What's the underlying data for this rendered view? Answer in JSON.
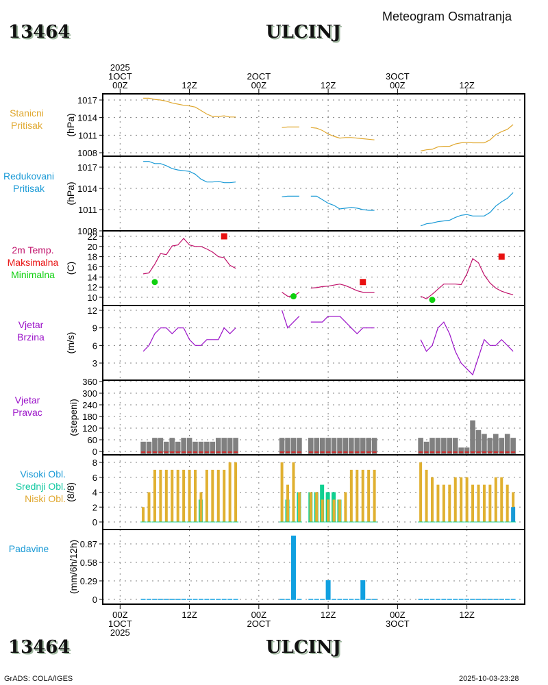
{
  "header": {
    "station_id": "13464",
    "station_name": "ULCINJ",
    "title": "Meteogram Osmatranja"
  },
  "footer": {
    "station_id": "13464",
    "station_name": "ULCINJ",
    "credit": "GrADS: COLA/IGES",
    "timestamp": "2025-10-03-23:28"
  },
  "time_axis": {
    "top_labels": [
      {
        "lines": [
          "2025",
          "1OCT",
          "00Z"
        ]
      },
      {
        "lines": [
          "12Z"
        ]
      },
      {
        "lines": [
          "2OCT",
          "00Z"
        ]
      },
      {
        "lines": [
          "12Z"
        ]
      },
      {
        "lines": [
          "3OCT",
          "00Z"
        ]
      },
      {
        "lines": [
          "12Z"
        ]
      }
    ],
    "bottom_labels": [
      {
        "lines": [
          "00Z",
          "1OCT",
          "2025"
        ]
      },
      {
        "lines": [
          "12Z"
        ]
      },
      {
        "lines": [
          "00Z",
          "2OCT"
        ]
      },
      {
        "lines": [
          "12Z"
        ]
      },
      {
        "lines": [
          "00Z",
          "3OCT"
        ]
      },
      {
        "lines": [
          "12Z"
        ]
      }
    ],
    "tick_hours": [
      0,
      12,
      24,
      36,
      48,
      60
    ],
    "range_hours": [
      -3,
      70
    ]
  },
  "colors": {
    "station_pressure": "#e0a830",
    "reduced_pressure": "#1a9ad6",
    "temperature": "#c0106a",
    "max_temp": "#e81010",
    "min_temp": "#10d010",
    "wind_speed": "#9a10c8",
    "wind_dir_bar": "#808080",
    "wind_dir_line": "#e81010",
    "high_cloud": "#1a9ad6",
    "mid_cloud": "#10d090",
    "low_cloud": "#e0b030",
    "precip": "#10a0e0",
    "grid": "#808080"
  },
  "chart_data": [
    {
      "type": "line",
      "name": "station-pressure",
      "labels": [
        "Stanicni",
        "Pritisak"
      ],
      "label_color": "#e0a830",
      "ylabel": "(hPa)",
      "ylim": [
        1007.5,
        1017.9
      ],
      "yticks": [
        1008,
        1011,
        1014,
        1017
      ],
      "x_unit": "hours since 2025-10-01 00Z",
      "segments": [
        {
          "x": [
            4,
            5,
            6,
            7,
            8,
            9,
            10,
            11,
            12,
            13,
            14,
            15,
            16,
            17,
            18,
            19,
            20
          ],
          "y": [
            1017.3,
            1017.3,
            1017.1,
            1017.0,
            1016.8,
            1016.5,
            1016.3,
            1016.1,
            1016.0,
            1015.8,
            1015.2,
            1014.6,
            1014.2,
            1014.2,
            1014.3,
            1014.1,
            1014.1
          ]
        },
        {
          "x": [
            28,
            29,
            30,
            31
          ],
          "y": [
            1012.3,
            1012.4,
            1012.4,
            1012.4
          ]
        },
        {
          "x": [
            33,
            34,
            35,
            36,
            37,
            38,
            39,
            40,
            41,
            42,
            43,
            44
          ],
          "y": [
            1012.3,
            1012.2,
            1011.8,
            1011.2,
            1010.8,
            1010.5,
            1010.6,
            1010.6,
            1010.5,
            1010.4,
            1010.3,
            1010.2
          ]
        },
        {
          "x": [
            52,
            53,
            54,
            55,
            56,
            57,
            58,
            59,
            60,
            61,
            62,
            63,
            64,
            65,
            66,
            67,
            68
          ],
          "y": [
            1008.3,
            1008.5,
            1008.6,
            1009.0,
            1009.1,
            1009.1,
            1009.5,
            1009.7,
            1009.8,
            1009.7,
            1009.7,
            1009.7,
            1010.2,
            1011.1,
            1011.6,
            1012.0,
            1012.8
          ]
        }
      ]
    },
    {
      "type": "line",
      "name": "reduced-pressure",
      "labels": [
        "Redukovani",
        "Pritisak"
      ],
      "label_color": "#1a9ad6",
      "ylabel": "(hPa)",
      "ylim": [
        1008,
        1017.5
      ],
      "yticks": [
        1008,
        1011,
        1014,
        1017
      ],
      "segments": [
        {
          "x": [
            4,
            5,
            6,
            7,
            8,
            9,
            10,
            11,
            12,
            13,
            14,
            15,
            16,
            17,
            18,
            19,
            20
          ],
          "y": [
            1017.8,
            1017.8,
            1017.5,
            1017.5,
            1017.2,
            1016.8,
            1016.6,
            1016.5,
            1016.4,
            1016.0,
            1015.3,
            1014.9,
            1014.9,
            1015.0,
            1014.8,
            1014.8,
            1014.9
          ]
        },
        {
          "x": [
            28,
            29,
            30,
            31
          ],
          "y": [
            1012.8,
            1012.9,
            1012.9,
            1012.9
          ]
        },
        {
          "x": [
            33,
            34,
            35,
            36,
            37,
            38,
            39,
            40,
            41,
            42,
            43,
            44
          ],
          "y": [
            1012.9,
            1012.9,
            1012.4,
            1011.9,
            1011.6,
            1011.1,
            1011.2,
            1011.3,
            1011.2,
            1011.0,
            1010.9,
            1010.9
          ]
        },
        {
          "x": [
            52,
            53,
            54,
            55,
            56,
            57,
            58,
            59,
            60,
            61,
            62,
            63,
            64,
            65,
            66,
            67,
            68
          ],
          "y": [
            1008.7,
            1009.0,
            1009.1,
            1009.3,
            1009.4,
            1009.5,
            1009.9,
            1010.2,
            1010.3,
            1010.1,
            1010.1,
            1010.1,
            1010.6,
            1011.5,
            1012.1,
            1012.6,
            1013.4
          ]
        }
      ]
    },
    {
      "type": "line",
      "name": "temperature",
      "labels": [
        "2m Temp.",
        "Maksimalna",
        "Minimalna"
      ],
      "label_colors": [
        "#c0106a",
        "#e81010",
        "#10d010"
      ],
      "ylabel": "(C)",
      "ylim": [
        8.5,
        22.8
      ],
      "yticks": [
        10,
        12,
        14,
        16,
        18,
        20,
        22
      ],
      "segments": [
        {
          "x": [
            4,
            5,
            6,
            7,
            8,
            9,
            10,
            11,
            12,
            13,
            14,
            15,
            16,
            17,
            18,
            19,
            20
          ],
          "y": [
            14.6,
            14.8,
            16.5,
            18.6,
            18.4,
            20.1,
            20.3,
            21.6,
            20.3,
            20.0,
            20.0,
            19.5,
            18.9,
            18.0,
            17.8,
            16.3,
            15.7
          ]
        },
        {
          "x": [
            28,
            29,
            30,
            31
          ],
          "y": [
            11.0,
            10.2,
            10.2,
            11.0
          ]
        },
        {
          "x": [
            33,
            34,
            35,
            36,
            37,
            38,
            39,
            40,
            41,
            42,
            43,
            44
          ],
          "y": [
            11.8,
            11.9,
            12.1,
            12.2,
            12.4,
            12.6,
            12.3,
            11.8,
            11.3,
            11.0,
            11.0,
            11.0
          ]
        },
        {
          "x": [
            52,
            53,
            54,
            55,
            56,
            57,
            58,
            59,
            60,
            61,
            62,
            63,
            64,
            65,
            66,
            67,
            68
          ],
          "y": [
            10.2,
            9.7,
            10.6,
            11.6,
            12.6,
            12.6,
            12.6,
            12.5,
            14.6,
            17.6,
            16.8,
            14.4,
            12.8,
            11.8,
            11.2,
            10.8,
            10.5
          ]
        }
      ],
      "max_points": [
        {
          "x": 18,
          "y": 22.0
        },
        {
          "x": 42,
          "y": 13.0
        },
        {
          "x": 66,
          "y": 18.0
        }
      ],
      "min_points": [
        {
          "x": 6,
          "y": 13.0
        },
        {
          "x": 30,
          "y": 10.2
        },
        {
          "x": 54,
          "y": 9.5
        }
      ]
    },
    {
      "type": "line",
      "name": "wind-speed",
      "labels": [
        "Vjetar",
        "Brzina"
      ],
      "label_color": "#9a10c8",
      "ylabel": "(m/s)",
      "ylim": [
        0,
        12.4
      ],
      "yticks": [
        3,
        6,
        9,
        12
      ],
      "segments": [
        {
          "x": [
            4,
            5,
            6,
            7,
            8,
            9,
            10,
            11,
            12,
            13,
            14,
            15,
            16,
            17,
            18,
            19,
            20
          ],
          "y": [
            5,
            6,
            8,
            9,
            9,
            8,
            9,
            9,
            7,
            6,
            6,
            7,
            7,
            7,
            9,
            8,
            9
          ]
        },
        {
          "x": [
            28,
            29,
            30,
            31
          ],
          "y": [
            12,
            9,
            10,
            11
          ]
        },
        {
          "x": [
            33,
            34,
            35,
            36,
            37,
            38,
            39,
            40,
            41,
            42,
            43,
            44
          ],
          "y": [
            10,
            10,
            10,
            11,
            11,
            11,
            10,
            9,
            8,
            9,
            9,
            9
          ]
        },
        {
          "x": [
            52,
            53,
            54,
            55,
            56,
            57,
            58,
            59,
            60,
            61,
            62,
            63,
            64,
            65,
            66,
            67,
            68
          ],
          "y": [
            7,
            5,
            6,
            9,
            10,
            8,
            5,
            3,
            2,
            1,
            4,
            7,
            6,
            6,
            7,
            6,
            5
          ]
        }
      ]
    },
    {
      "type": "bar",
      "name": "wind-direction",
      "labels": [
        "Vjetar",
        "Pravac"
      ],
      "label_color": "#9a10c8",
      "ylabel": "(stepeni)",
      "ylim": [
        0,
        360
      ],
      "yticks": [
        0,
        60,
        120,
        180,
        240,
        300,
        360
      ],
      "x": [
        4,
        5,
        6,
        7,
        8,
        9,
        10,
        11,
        12,
        13,
        14,
        15,
        16,
        17,
        18,
        19,
        20,
        28,
        29,
        30,
        31,
        33,
        34,
        35,
        36,
        37,
        38,
        39,
        40,
        41,
        42,
        43,
        44,
        52,
        53,
        54,
        55,
        56,
        57,
        58,
        59,
        60,
        61,
        62,
        63,
        64,
        65,
        66,
        67,
        68
      ],
      "values": [
        50,
        50,
        70,
        70,
        50,
        70,
        50,
        70,
        70,
        50,
        50,
        50,
        50,
        70,
        70,
        70,
        70,
        70,
        70,
        70,
        70,
        70,
        70,
        70,
        70,
        70,
        70,
        70,
        70,
        70,
        70,
        70,
        70,
        70,
        50,
        70,
        70,
        70,
        70,
        70,
        20,
        20,
        160,
        110,
        90,
        70,
        90,
        70,
        90,
        70
      ]
    },
    {
      "type": "bar",
      "name": "cloud-cover",
      "labels": [
        "Visoki Obl.",
        "Srednji Obl.",
        "Niski Obl."
      ],
      "label_colors": [
        "#1a9ad6",
        "#10c8a0",
        "#e0a830"
      ],
      "ylabel": "(8/8)",
      "ylim": [
        0,
        8.5
      ],
      "yticks": [
        0,
        2,
        4,
        6,
        8
      ],
      "x": [
        4,
        5,
        6,
        7,
        8,
        9,
        10,
        11,
        12,
        13,
        14,
        15,
        16,
        17,
        18,
        19,
        20,
        28,
        29,
        30,
        31,
        33,
        34,
        35,
        36,
        37,
        38,
        39,
        40,
        41,
        42,
        43,
        44,
        52,
        53,
        54,
        55,
        56,
        57,
        58,
        59,
        60,
        61,
        62,
        63,
        64,
        65,
        66,
        67,
        68
      ],
      "series": [
        {
          "name": "Niski Obl.",
          "values": [
            2,
            4,
            7,
            7,
            7,
            7,
            7,
            7,
            7,
            7,
            4,
            7,
            7,
            7,
            7,
            8,
            8,
            8,
            5,
            8,
            4,
            4,
            4,
            3,
            3,
            3,
            3,
            4,
            7,
            7,
            7,
            7,
            7,
            8,
            7,
            6,
            5,
            5,
            5,
            6,
            6,
            6,
            5,
            5,
            5,
            5,
            6,
            6,
            5,
            4
          ]
        },
        {
          "name": "Srednji Obl.",
          "values": [
            0,
            0,
            0,
            0,
            0,
            0,
            0,
            0,
            0,
            0,
            3,
            0,
            0,
            0,
            0,
            0,
            0,
            0,
            3,
            0,
            4,
            4,
            4,
            5,
            4,
            4,
            3,
            0,
            0,
            0,
            0,
            0,
            0,
            0,
            0,
            0,
            0,
            0,
            0,
            0,
            0,
            0,
            0,
            0,
            0,
            0,
            0,
            0,
            0,
            0
          ]
        },
        {
          "name": "Visoki Obl.",
          "values": [
            0,
            0,
            0,
            0,
            0,
            0,
            0,
            0,
            0,
            0,
            0,
            0,
            0,
            0,
            0,
            0,
            0,
            0,
            0,
            0,
            0,
            0,
            0,
            0,
            0,
            0,
            0,
            0,
            0,
            0,
            0,
            0,
            0,
            0,
            0,
            0,
            0,
            0,
            0,
            0,
            0,
            0,
            0,
            0,
            0,
            0,
            0,
            0,
            0,
            2
          ]
        }
      ]
    },
    {
      "type": "bar",
      "name": "precipitation",
      "labels": [
        "Padavine"
      ],
      "label_color": "#1a9ad6",
      "ylabel": "(mm/6h/12h)",
      "ylim": [
        0,
        1.05
      ],
      "yticks": [
        0,
        0.29,
        0.58,
        0.87
      ],
      "ytick_labels": [
        "0",
        "0.29",
        "0.58",
        "0.87"
      ],
      "x": [
        4,
        5,
        6,
        7,
        8,
        9,
        10,
        11,
        12,
        13,
        14,
        15,
        16,
        17,
        18,
        19,
        20,
        28,
        29,
        30,
        31,
        33,
        34,
        35,
        36,
        37,
        38,
        39,
        40,
        41,
        42,
        43,
        44,
        52,
        53,
        54,
        55,
        56,
        57,
        58,
        59,
        60,
        61,
        62,
        63,
        64,
        65,
        66,
        67,
        68
      ],
      "values": [
        0,
        0,
        0,
        0,
        0,
        0,
        0,
        0,
        0,
        0,
        0,
        0,
        0,
        0,
        0,
        0,
        0,
        0,
        0,
        1.0,
        0,
        0,
        0,
        0,
        0.3,
        0,
        0,
        0,
        0,
        0,
        0.3,
        0,
        0,
        0,
        0,
        0,
        0,
        0,
        0,
        0,
        0,
        0,
        0,
        0,
        0,
        0,
        0,
        0,
        0,
        0
      ]
    }
  ]
}
